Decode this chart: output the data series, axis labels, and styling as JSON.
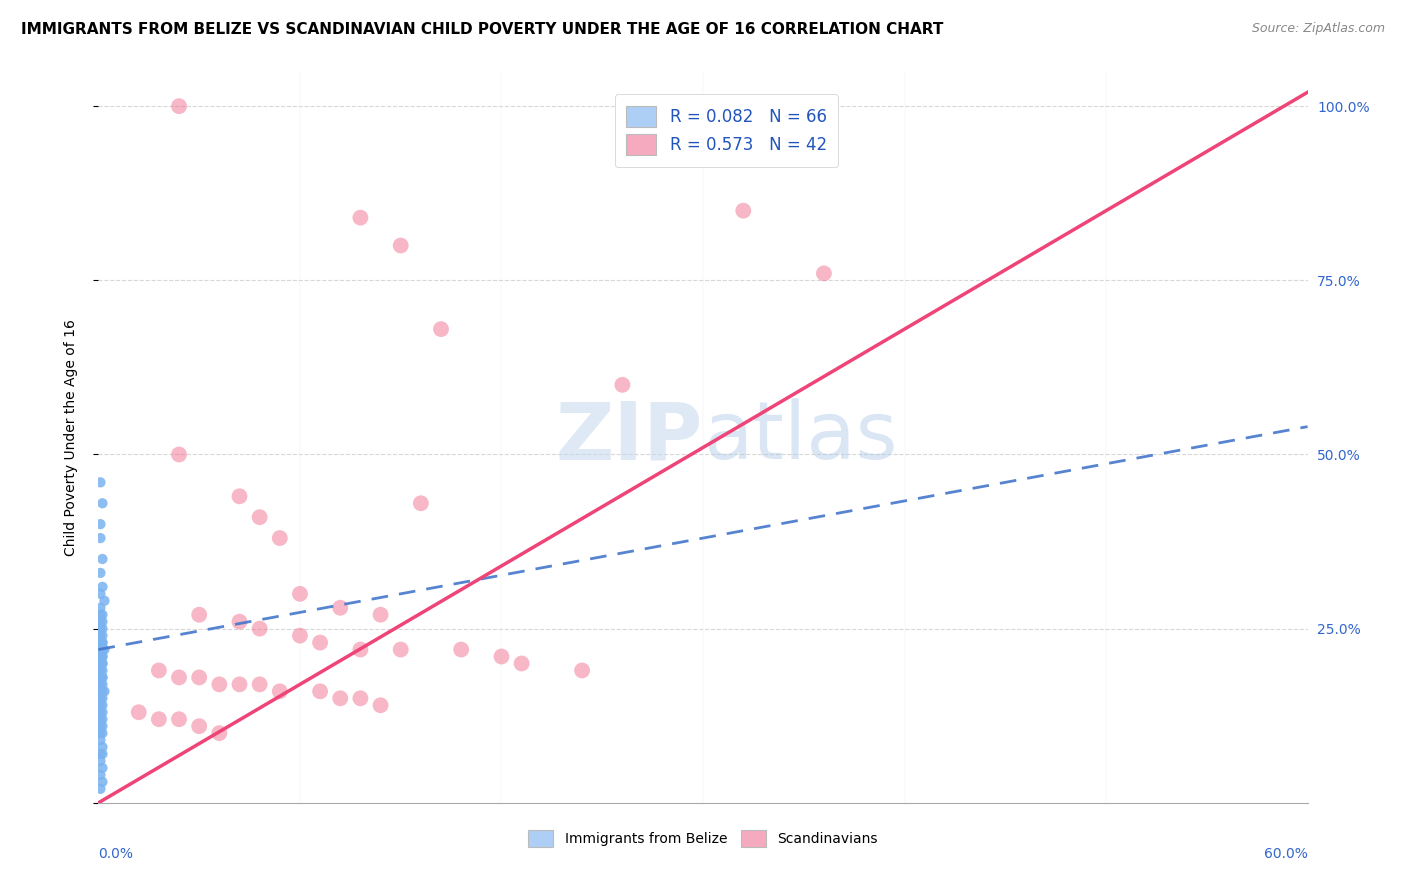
{
  "title": "IMMIGRANTS FROM BELIZE VS SCANDINAVIAN CHILD POVERTY UNDER THE AGE OF 16 CORRELATION CHART",
  "source": "Source: ZipAtlas.com",
  "ylabel": "Child Poverty Under the Age of 16",
  "watermark": "ZIPatlas",
  "legend_1_label": "R = 0.082   N = 66",
  "legend_2_label": "R = 0.573   N = 42",
  "legend_1_color": "#aecff5",
  "legend_2_color": "#f5aabf",
  "belize_color": "#7ab3ef",
  "scandinavian_color": "#f07090",
  "belize_line_color": "#4477cc",
  "scandinavian_line_color": "#ee4477",
  "background_color": "#ffffff",
  "grid_color": "#d8d8d8",
  "belize_x": [
    0.001,
    0.002,
    0.001,
    0.001,
    0.002,
    0.001,
    0.002,
    0.001,
    0.003,
    0.001,
    0.002,
    0.001,
    0.002,
    0.001,
    0.002,
    0.001,
    0.002,
    0.001,
    0.002,
    0.001,
    0.002,
    0.001,
    0.002,
    0.001,
    0.003,
    0.001,
    0.002,
    0.001,
    0.002,
    0.001,
    0.002,
    0.001,
    0.002,
    0.001,
    0.002,
    0.001,
    0.002,
    0.001,
    0.002,
    0.001,
    0.002,
    0.001,
    0.002,
    0.001,
    0.003,
    0.001,
    0.002,
    0.001,
    0.002,
    0.001,
    0.002,
    0.001,
    0.002,
    0.001,
    0.002,
    0.001,
    0.002,
    0.001,
    0.002,
    0.001,
    0.002,
    0.001,
    0.002,
    0.001,
    0.002,
    0.001
  ],
  "belize_y": [
    0.46,
    0.43,
    0.4,
    0.38,
    0.35,
    0.33,
    0.31,
    0.3,
    0.29,
    0.28,
    0.27,
    0.27,
    0.26,
    0.26,
    0.25,
    0.25,
    0.24,
    0.24,
    0.23,
    0.23,
    0.23,
    0.22,
    0.22,
    0.22,
    0.22,
    0.21,
    0.21,
    0.21,
    0.21,
    0.2,
    0.2,
    0.2,
    0.2,
    0.19,
    0.19,
    0.19,
    0.18,
    0.18,
    0.18,
    0.17,
    0.17,
    0.17,
    0.16,
    0.16,
    0.16,
    0.15,
    0.15,
    0.14,
    0.14,
    0.13,
    0.13,
    0.12,
    0.12,
    0.11,
    0.11,
    0.1,
    0.1,
    0.09,
    0.08,
    0.07,
    0.07,
    0.06,
    0.05,
    0.04,
    0.03,
    0.02
  ],
  "scand_x": [
    0.04,
    0.13,
    0.15,
    0.17,
    0.26,
    0.04,
    0.07,
    0.08,
    0.09,
    0.1,
    0.12,
    0.14,
    0.16,
    0.05,
    0.07,
    0.08,
    0.1,
    0.11,
    0.13,
    0.15,
    0.18,
    0.2,
    0.21,
    0.24,
    0.03,
    0.04,
    0.05,
    0.06,
    0.07,
    0.08,
    0.09,
    0.11,
    0.12,
    0.13,
    0.14,
    0.02,
    0.03,
    0.04,
    0.05,
    0.06,
    0.32,
    0.36
  ],
  "scand_y": [
    1.0,
    0.84,
    0.8,
    0.68,
    0.6,
    0.5,
    0.44,
    0.41,
    0.38,
    0.3,
    0.28,
    0.27,
    0.43,
    0.27,
    0.26,
    0.25,
    0.24,
    0.23,
    0.22,
    0.22,
    0.22,
    0.21,
    0.2,
    0.19,
    0.19,
    0.18,
    0.18,
    0.17,
    0.17,
    0.17,
    0.16,
    0.16,
    0.15,
    0.15,
    0.14,
    0.13,
    0.12,
    0.12,
    0.11,
    0.1,
    0.85,
    0.76
  ],
  "xlim": [
    0.0,
    0.6
  ],
  "ylim": [
    0.0,
    1.05
  ],
  "yticks": [
    0.0,
    0.25,
    0.5,
    0.75,
    1.0
  ],
  "ytick_labels": [
    "",
    "25.0%",
    "50.0%",
    "75.0%",
    "100.0%"
  ],
  "title_fontsize": 11,
  "source_fontsize": 9,
  "label_fontsize": 10,
  "belize_line_x0": 0.0,
  "belize_line_x1": 0.6,
  "belize_line_y0": 0.22,
  "belize_line_y1": 0.54,
  "scand_line_x0": 0.0,
  "scand_line_x1": 0.6,
  "scand_line_y0": 0.0,
  "scand_line_y1": 1.02
}
